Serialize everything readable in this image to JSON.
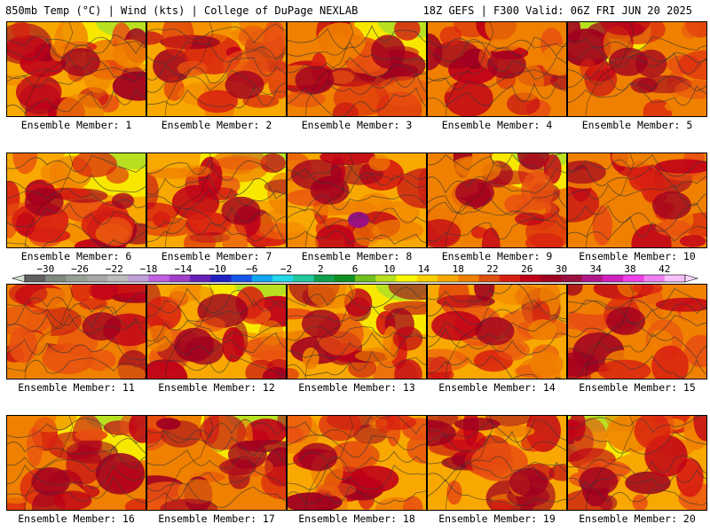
{
  "header": {
    "left": "850mb Temp (°C) | Wind (kts) | College of DuPage NEXLAB",
    "right": "18Z GEFS | F300 Valid: 06Z FRI JUN 20 2025"
  },
  "panels": [
    {
      "label": "Ensemble Member: 1"
    },
    {
      "label": "Ensemble Member: 2"
    },
    {
      "label": "Ensemble Member: 3"
    },
    {
      "label": "Ensemble Member: 4"
    },
    {
      "label": "Ensemble Member: 5"
    },
    {
      "label": "Ensemble Member: 6"
    },
    {
      "label": "Ensemble Member: 7"
    },
    {
      "label": "Ensemble Member: 8"
    },
    {
      "label": "Ensemble Member: 9"
    },
    {
      "label": "Ensemble Member: 10"
    },
    {
      "label": "Ensemble Member: 11"
    },
    {
      "label": "Ensemble Member: 12"
    },
    {
      "label": "Ensemble Member: 13"
    },
    {
      "label": "Ensemble Member: 14"
    },
    {
      "label": "Ensemble Member: 15"
    },
    {
      "label": "Ensemble Member: 16"
    },
    {
      "label": "Ensemble Member: 17"
    },
    {
      "label": "Ensemble Member: 18"
    },
    {
      "label": "Ensemble Member: 19"
    },
    {
      "label": "Ensemble Member: 20"
    }
  ],
  "colorbar": {
    "tick_labels": [
      "−30",
      "−26",
      "−22",
      "−18",
      "−14",
      "−10",
      "−6",
      "−2",
      "2",
      "6",
      "10",
      "14",
      "18",
      "22",
      "26",
      "30",
      "34",
      "38",
      "42"
    ],
    "colors": [
      "#606060",
      "#7e8a7e",
      "#96a096",
      "#a8a8a8",
      "#bcbcbc",
      "#c0a0d8",
      "#c060e0",
      "#a040c8",
      "#6820b8",
      "#2020c0",
      "#1858e8",
      "#10a8f0",
      "#20d8e8",
      "#20c8a0",
      "#10a050",
      "#109020",
      "#70c020",
      "#b8e020",
      "#f8f800",
      "#f8d000",
      "#f8a800",
      "#f08000",
      "#e05010",
      "#d82010",
      "#c00018",
      "#a00020",
      "#9a1040",
      "#b01888",
      "#d020c0",
      "#f040e8",
      "#f080f0",
      "#f8c0f8"
    ]
  }
}
